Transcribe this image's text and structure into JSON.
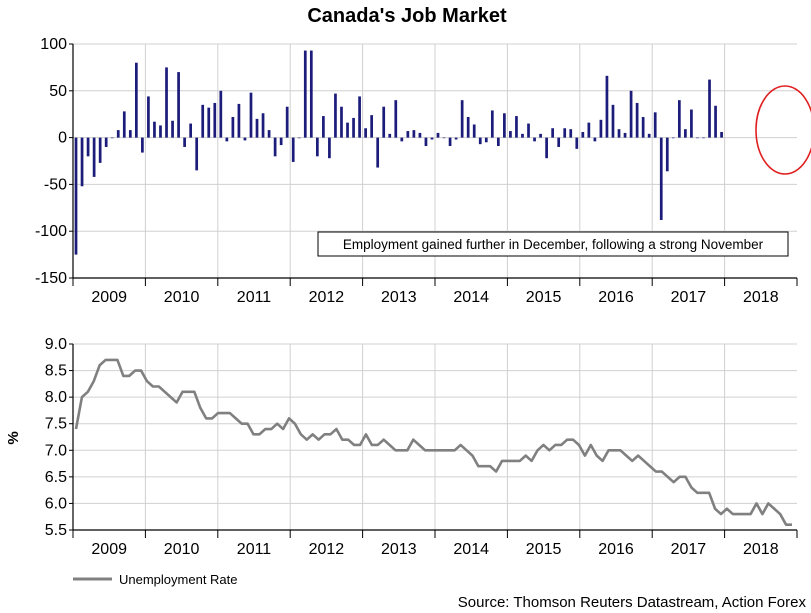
{
  "title": "Canada's Job Market",
  "source": "Source: Thomson Reuters Datastream, Action Forex",
  "colors": {
    "bars": "#1c1c7a",
    "line": "#808080",
    "grid": "#d0d0d0",
    "highlight": "#e02020"
  },
  "chart_data": [
    {
      "type": "bar",
      "name": "employment-change",
      "ylabel": "",
      "ylim": [
        -150,
        100
      ],
      "yticks": [
        100,
        50,
        0,
        -50,
        -100,
        -150
      ],
      "ytick_labels": [
        "100",
        "50",
        "0",
        "-50",
        "-100",
        "-150"
      ],
      "year_labels": [
        "2009",
        "2010",
        "2011",
        "2012",
        "2013",
        "2014",
        "2015",
        "2016",
        "2017",
        "2018"
      ],
      "x": {
        "start_year": 2009,
        "start_month": 1,
        "months_per_year": 12
      },
      "values": [
        -125,
        -52,
        -20,
        -42,
        -27,
        -10,
        0,
        8,
        28,
        8,
        80,
        -16,
        44,
        17,
        13,
        75,
        18,
        70,
        -10,
        15,
        -35,
        35,
        32,
        37,
        50,
        -4,
        22,
        36,
        -3,
        48,
        20,
        26,
        8,
        -20,
        -8,
        33,
        -26,
        0,
        93,
        93,
        -20,
        23,
        -22,
        47,
        33,
        16,
        21,
        44,
        10,
        24,
        -32,
        33,
        4,
        40,
        -4,
        7,
        8,
        5,
        -9,
        -2,
        5,
        0,
        -9,
        -2,
        40,
        22,
        14,
        -7,
        -5,
        29,
        -9,
        26,
        7,
        23,
        4,
        15,
        -4,
        4,
        -22,
        10,
        -10,
        10,
        9,
        -12,
        6,
        16,
        -4,
        19,
        66,
        35,
        9,
        5,
        50,
        37,
        22,
        4,
        27,
        -88,
        -36,
        0,
        40,
        9,
        30,
        0,
        0,
        62,
        34,
        6
      ],
      "annotation": "Employment gained further in December, following a strong November"
    },
    {
      "type": "line",
      "name": "unemployment-rate",
      "ylabel": "%",
      "ylim": [
        5.5,
        9.0
      ],
      "yticks": [
        9.0,
        8.5,
        8.0,
        7.5,
        7.0,
        6.5,
        6.0,
        5.5
      ],
      "ytick_labels": [
        "9.0",
        "8.5",
        "8.0",
        "7.5",
        "7.0",
        "6.5",
        "6.0",
        "5.5"
      ],
      "year_labels": [
        "2009",
        "2010",
        "2011",
        "2012",
        "2013",
        "2014",
        "2015",
        "2016",
        "2017",
        "2018"
      ],
      "legend": "Unemployment Rate",
      "x": {
        "start_year": 2009,
        "start_month": 1,
        "months_per_year": 12
      },
      "values": [
        7.4,
        8.0,
        8.1,
        8.3,
        8.6,
        8.7,
        8.7,
        8.7,
        8.4,
        8.4,
        8.5,
        8.5,
        8.3,
        8.2,
        8.2,
        8.1,
        8.0,
        7.9,
        8.1,
        8.1,
        8.1,
        7.8,
        7.6,
        7.6,
        7.7,
        7.7,
        7.7,
        7.6,
        7.5,
        7.5,
        7.3,
        7.3,
        7.4,
        7.4,
        7.5,
        7.4,
        7.6,
        7.5,
        7.3,
        7.2,
        7.3,
        7.2,
        7.3,
        7.3,
        7.4,
        7.2,
        7.2,
        7.1,
        7.1,
        7.3,
        7.1,
        7.1,
        7.2,
        7.1,
        7.0,
        7.0,
        7.0,
        7.2,
        7.1,
        7.0,
        7.0,
        7.0,
        7.0,
        7.0,
        7.0,
        7.1,
        7.0,
        6.9,
        6.7,
        6.7,
        6.7,
        6.6,
        6.8,
        6.8,
        6.8,
        6.8,
        6.9,
        6.8,
        7.0,
        7.1,
        7.0,
        7.1,
        7.1,
        7.2,
        7.2,
        7.1,
        6.9,
        7.1,
        6.9,
        6.8,
        7.0,
        7.0,
        7.0,
        6.9,
        6.8,
        6.9,
        6.8,
        6.7,
        6.6,
        6.6,
        6.5,
        6.4,
        6.5,
        6.5,
        6.3,
        6.2,
        6.2,
        6.2,
        5.9,
        5.8,
        5.9,
        5.8,
        5.8,
        5.8,
        5.8,
        6.0,
        5.8,
        6.0,
        5.9,
        5.8,
        5.6,
        5.6
      ]
    }
  ]
}
